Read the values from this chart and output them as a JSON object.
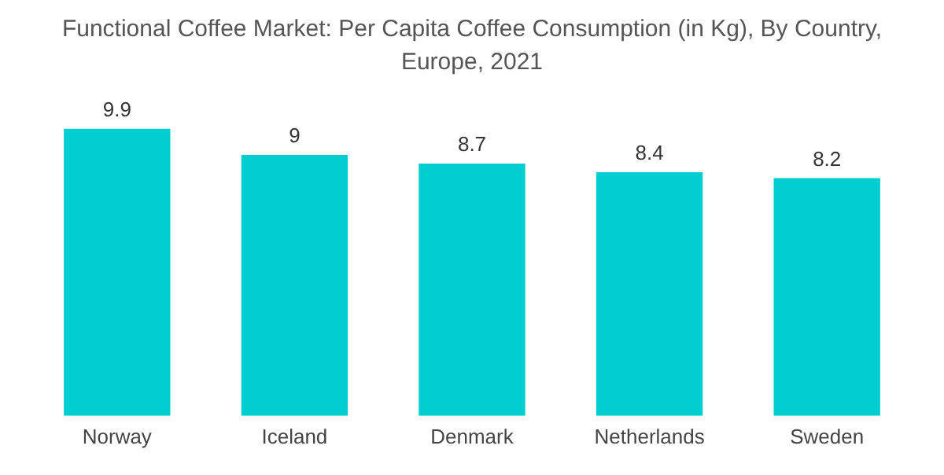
{
  "chart_data": {
    "type": "bar",
    "title": "Functional Coffee Market: Per Capita Coffee Consumption (in Kg), By Country, Europe, 2021",
    "categories": [
      "Norway",
      "Iceland",
      "Denmark",
      "Netherlands",
      "Sweden"
    ],
    "values": [
      9.9,
      9,
      8.7,
      8.4,
      8.2
    ],
    "color": "#00ced1",
    "data_labels": true,
    "grid": false,
    "legend": false,
    "tick_labels": "x"
  }
}
